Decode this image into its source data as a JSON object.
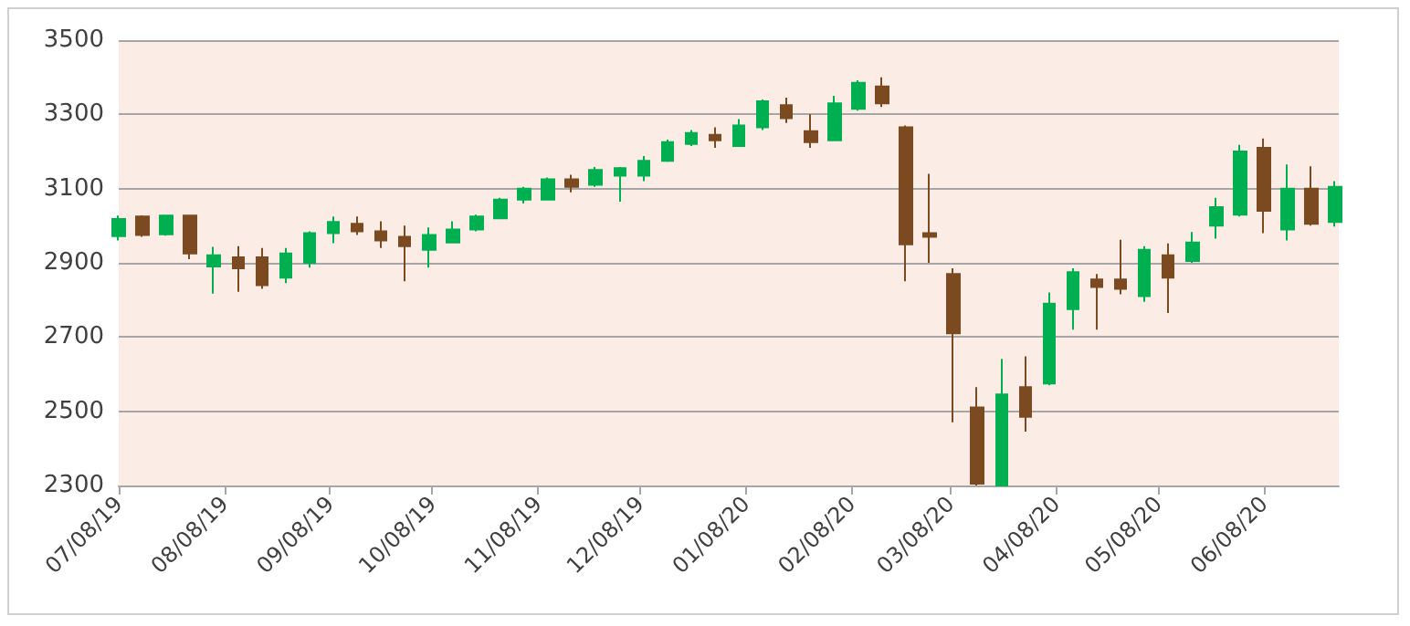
{
  "chart_data": {
    "type": "candlestick",
    "x": [
      "2019-07-08",
      "2019-07-15",
      "2019-07-22",
      "2019-07-29",
      "2019-08-05",
      "2019-08-12",
      "2019-08-19",
      "2019-08-26",
      "2019-09-02",
      "2019-09-09",
      "2019-09-16",
      "2019-09-23",
      "2019-09-30",
      "2019-10-07",
      "2019-10-14",
      "2019-10-21",
      "2019-10-28",
      "2019-11-04",
      "2019-11-11",
      "2019-11-18",
      "2019-11-25",
      "2019-12-02",
      "2019-12-09",
      "2019-12-16",
      "2019-12-23",
      "2019-12-30",
      "2020-01-06",
      "2020-01-13",
      "2020-01-20",
      "2020-01-27",
      "2020-02-03",
      "2020-02-10",
      "2020-02-17",
      "2020-02-24",
      "2020-03-02",
      "2020-03-09",
      "2020-03-16",
      "2020-03-23",
      "2020-03-30",
      "2020-04-06",
      "2020-04-13",
      "2020-04-20",
      "2020-04-27",
      "2020-05-04",
      "2020-05-11",
      "2020-05-18",
      "2020-05-25",
      "2020-06-01",
      "2020-06-08",
      "2020-06-15",
      "2020-06-22",
      "2020-06-29"
    ],
    "ohlc": [
      [
        2972,
        3027,
        2960,
        3018
      ],
      [
        3025,
        3028,
        2970,
        2975
      ],
      [
        2977,
        3030,
        2973,
        3027
      ],
      [
        3027,
        3030,
        2910,
        2925
      ],
      [
        2890,
        2943,
        2817,
        2920
      ],
      [
        2915,
        2945,
        2822,
        2885
      ],
      [
        2915,
        2940,
        2830,
        2840
      ],
      [
        2860,
        2940,
        2845,
        2925
      ],
      [
        2900,
        2985,
        2887,
        2980
      ],
      [
        2980,
        3025,
        2953,
        3010
      ],
      [
        3005,
        3025,
        2975,
        2985
      ],
      [
        2985,
        3012,
        2940,
        2960
      ],
      [
        2970,
        3000,
        2850,
        2945
      ],
      [
        2935,
        2995,
        2887,
        2975
      ],
      [
        2955,
        3012,
        2953,
        2990
      ],
      [
        2990,
        3030,
        2985,
        3025
      ],
      [
        3020,
        3075,
        3018,
        3070
      ],
      [
        3070,
        3105,
        3060,
        3100
      ],
      [
        3070,
        3130,
        3068,
        3125
      ],
      [
        3125,
        3137,
        3090,
        3105
      ],
      [
        3110,
        3158,
        3105,
        3150
      ],
      [
        3135,
        3158,
        3065,
        3155
      ],
      [
        3135,
        3188,
        3120,
        3175
      ],
      [
        3175,
        3232,
        3172,
        3225
      ],
      [
        3220,
        3258,
        3215,
        3250
      ],
      [
        3245,
        3265,
        3210,
        3230
      ],
      [
        3215,
        3287,
        3212,
        3270
      ],
      [
        3265,
        3340,
        3258,
        3335
      ],
      [
        3325,
        3345,
        3277,
        3290
      ],
      [
        3255,
        3300,
        3210,
        3225
      ],
      [
        3230,
        3350,
        3228,
        3330
      ],
      [
        3315,
        3392,
        3310,
        3385
      ],
      [
        3375,
        3400,
        3320,
        3330
      ],
      [
        3265,
        3270,
        2850,
        2950
      ],
      [
        2980,
        3140,
        2900,
        2970
      ],
      [
        2870,
        2885,
        2470,
        2710
      ],
      [
        2510,
        2565,
        2300,
        2305
      ],
      [
        2300,
        2641,
        2300,
        2545
      ],
      [
        2565,
        2648,
        2445,
        2485
      ],
      [
        2575,
        2820,
        2570,
        2790
      ],
      [
        2775,
        2885,
        2720,
        2875
      ],
      [
        2855,
        2870,
        2720,
        2835
      ],
      [
        2855,
        2962,
        2815,
        2830
      ],
      [
        2810,
        2945,
        2795,
        2935
      ],
      [
        2920,
        2952,
        2765,
        2860
      ],
      [
        2905,
        2983,
        2900,
        2955
      ],
      [
        3000,
        3075,
        2965,
        3050
      ],
      [
        3030,
        3218,
        3025,
        3200
      ],
      [
        3210,
        3235,
        2980,
        3040
      ],
      [
        2990,
        3165,
        2960,
        3100
      ],
      [
        3100,
        3160,
        3000,
        3005
      ],
      [
        3010,
        3120,
        2998,
        3105
      ]
    ],
    "colors": [
      "#00b050",
      "#7b4a21",
      "#00b050",
      "#7b4a21",
      "#00b050",
      "#7b4a21",
      "#7b4a21",
      "#00b050",
      "#00b050",
      "#00b050",
      "#7b4a21",
      "#7b4a21",
      "#7b4a21",
      "#00b050",
      "#00b050",
      "#00b050",
      "#00b050",
      "#00b050",
      "#00b050",
      "#7b4a21",
      "#00b050",
      "#00b050",
      "#00b050",
      "#00b050",
      "#00b050",
      "#7b4a21",
      "#00b050",
      "#00b050",
      "#7b4a21",
      "#7b4a21",
      "#00b050",
      "#00b050",
      "#7b4a21",
      "#7b4a21",
      "#7b4a21",
      "#7b4a21",
      "#7b4a21",
      "#00b050",
      "#7b4a21",
      "#00b050",
      "#00b050",
      "#7b4a21",
      "#7b4a21",
      "#00b050",
      "#7b4a21",
      "#00b050",
      "#00b050",
      "#00b050",
      "#7b4a21",
      "#00b050",
      "#7b4a21",
      "#00b050"
    ],
    "xlim": [
      "2019-07-08",
      "2020-06-30"
    ],
    "xticks": [
      {
        "value": "2019-07-08",
        "label": "07/08/19"
      },
      {
        "value": "2019-08-08",
        "label": "08/08/19"
      },
      {
        "value": "2019-09-08",
        "label": "09/08/19"
      },
      {
        "value": "2019-10-08",
        "label": "10/08/19"
      },
      {
        "value": "2019-11-08",
        "label": "11/08/19"
      },
      {
        "value": "2019-12-08",
        "label": "12/08/19"
      },
      {
        "value": "2020-01-08",
        "label": "01/08/20"
      },
      {
        "value": "2020-02-08",
        "label": "02/08/20"
      },
      {
        "value": "2020-03-08",
        "label": "03/08/20"
      },
      {
        "value": "2020-04-08",
        "label": "04/08/20"
      },
      {
        "value": "2020-05-08",
        "label": "05/08/20"
      },
      {
        "value": "2020-06-08",
        "label": "06/08/20"
      }
    ],
    "ylim": [
      2300,
      3500
    ],
    "yticks": [
      2300,
      2500,
      2700,
      2900,
      3100,
      3300,
      3500
    ],
    "grid": "y"
  }
}
